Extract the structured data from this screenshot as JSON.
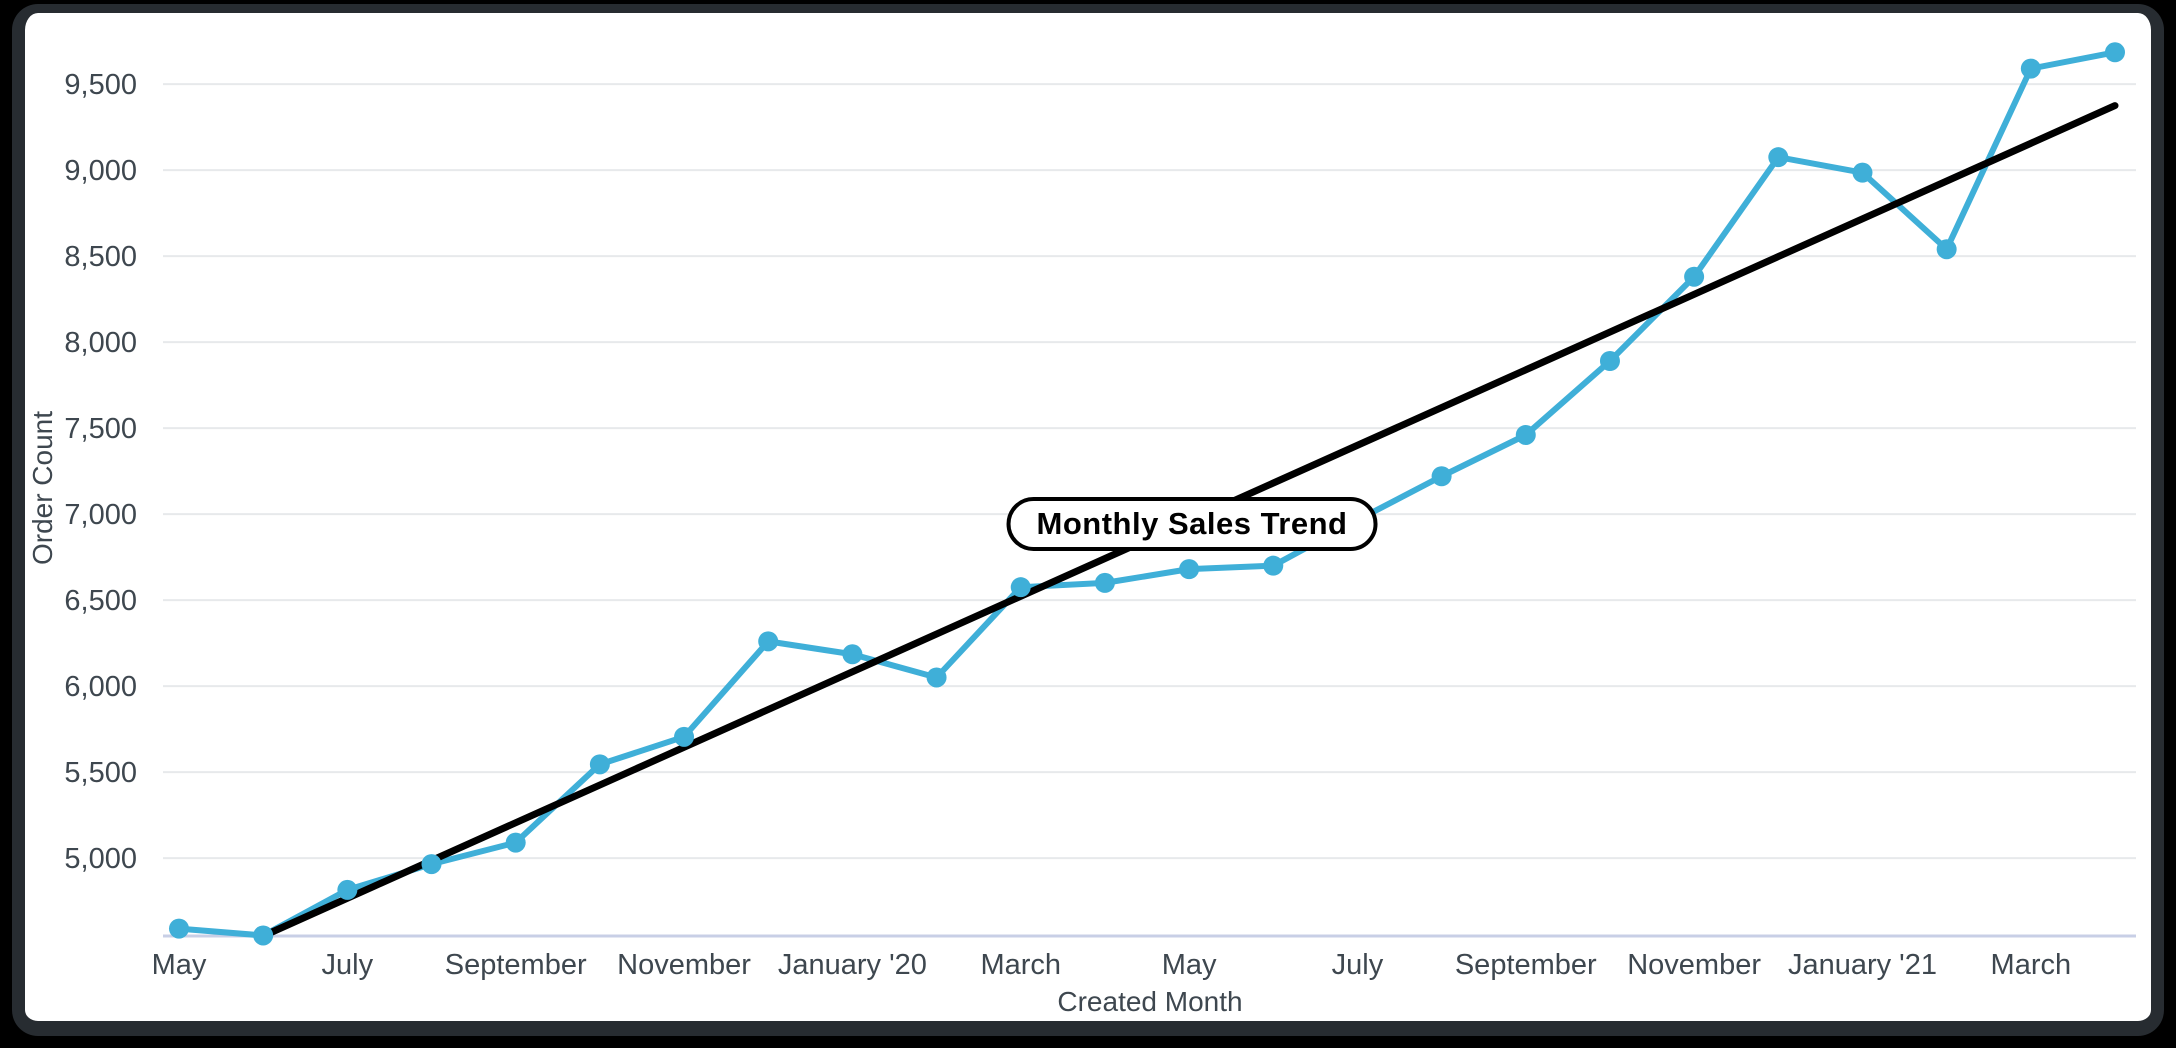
{
  "page": {
    "background": "#000000"
  },
  "card": {
    "background": "#ffffff",
    "frame_color": "#272c31"
  },
  "chart_data": {
    "type": "line",
    "title": "Monthly Sales Trend",
    "xlabel": "Created Month",
    "ylabel": "Order Count",
    "legend": "none",
    "grid": "horizontal-only",
    "categories": [
      "May 2019",
      "June 2019",
      "July 2019",
      "August 2019",
      "September 2019",
      "October 2019",
      "November 2019",
      "December 2019",
      "January 2020",
      "February 2020",
      "March 2020",
      "April 2020",
      "May 2020",
      "June 2020",
      "July 2020",
      "August 2020",
      "September 2020",
      "October 2020",
      "November 2020",
      "December 2020",
      "January 2021",
      "February 2021",
      "March 2021",
      "April 2021"
    ],
    "series": [
      {
        "name": "Order Count",
        "type": "line",
        "color": "#3fafd8",
        "marker": "circle",
        "values": [
          4590,
          4550,
          4815,
          4965,
          5090,
          5545,
          5705,
          6260,
          6185,
          6050,
          6575,
          6600,
          6680,
          6700,
          6965,
          7220,
          7460,
          7890,
          8380,
          9075,
          8985,
          8540,
          9590,
          9685
        ]
      },
      {
        "name": "Linear Trendline",
        "type": "trendline",
        "color": "#000000",
        "endpoints": {
          "start_index": 1,
          "start_value": 4547,
          "end_index": 23,
          "end_value": 9375
        }
      }
    ],
    "y_ticks": [
      5000,
      5500,
      6000,
      6500,
      7000,
      7500,
      8000,
      8500,
      9000,
      9500
    ],
    "ylim": [
      4547,
      9790
    ],
    "x_tick_positions": [
      0,
      2,
      4,
      6,
      8,
      10,
      12,
      14,
      16,
      18,
      20,
      22
    ],
    "x_tick_labels": [
      "May",
      "July",
      "September",
      "November",
      "January '20",
      "March",
      "May",
      "July",
      "September",
      "November",
      "January '21",
      "March"
    ],
    "colors": {
      "series": "#3fafd8",
      "trendline": "#000000",
      "gridline": "#e7e9eb",
      "axis_baseline": "#c8cfe6",
      "tick_text": "#3e474f"
    }
  }
}
